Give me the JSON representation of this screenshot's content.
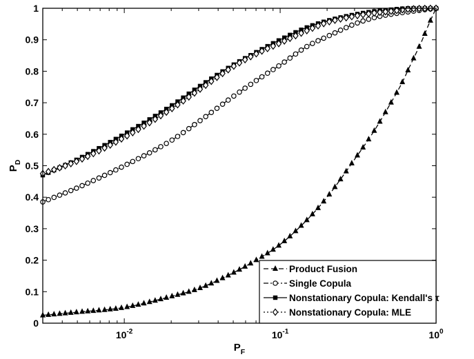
{
  "chart_data": {
    "type": "line",
    "title": "",
    "xlabel": {
      "main": "P",
      "sub": "F"
    },
    "ylabel": {
      "main": "P",
      "sub": "D"
    },
    "xscale": "log",
    "xlim": [
      0.003,
      1
    ],
    "ylim": [
      0,
      1
    ],
    "xticks": [
      {
        "value": 0.01,
        "base": "10",
        "exp": "-2"
      },
      {
        "value": 0.1,
        "base": "10",
        "exp": "-1"
      },
      {
        "value": 1,
        "base": "10",
        "exp": "0"
      }
    ],
    "yticks": [
      "0",
      "0.1",
      "0.2",
      "0.3",
      "0.4",
      "0.5",
      "0.6",
      "0.7",
      "0.8",
      "0.9",
      "1"
    ],
    "grid": false,
    "legend_position": "bottom-right",
    "series": [
      {
        "name": "Product Fusion",
        "line_style": "dashed",
        "marker": "triangle",
        "x": [
          0.003,
          0.005,
          0.01,
          0.02,
          0.03,
          0.05,
          0.07,
          0.1,
          0.15,
          0.2,
          0.3,
          0.4,
          0.5,
          0.6,
          0.7,
          0.8,
          0.9,
          1.0
        ],
        "y": [
          0.025,
          0.035,
          0.05,
          0.085,
          0.11,
          0.16,
          0.2,
          0.25,
          0.33,
          0.4,
          0.52,
          0.61,
          0.69,
          0.76,
          0.83,
          0.89,
          0.95,
          1.0
        ]
      },
      {
        "name": "Single Copula",
        "line_style": "dashdot",
        "marker": "circle",
        "x": [
          0.003,
          0.005,
          0.01,
          0.02,
          0.03,
          0.05,
          0.07,
          0.1,
          0.15,
          0.2,
          0.3,
          0.4,
          0.5,
          0.7,
          1.0
        ],
        "y": [
          0.385,
          0.43,
          0.5,
          0.58,
          0.64,
          0.72,
          0.77,
          0.82,
          0.88,
          0.91,
          0.95,
          0.97,
          0.98,
          0.99,
          1.0
        ]
      },
      {
        "name": "Nonstationary Copula: Kendall's τ",
        "line_style": "solid",
        "marker": "square",
        "x": [
          0.003,
          0.005,
          0.01,
          0.02,
          0.03,
          0.05,
          0.07,
          0.1,
          0.15,
          0.2,
          0.3,
          0.4,
          0.5,
          0.7,
          1.0
        ],
        "y": [
          0.47,
          0.52,
          0.6,
          0.69,
          0.75,
          0.82,
          0.86,
          0.9,
          0.94,
          0.96,
          0.98,
          0.99,
          0.995,
          1.0,
          1.0
        ]
      },
      {
        "name": "Nonstationary Copula: MLE",
        "line_style": "dotted",
        "marker": "diamond",
        "x": [
          0.003,
          0.005,
          0.01,
          0.02,
          0.03,
          0.05,
          0.07,
          0.1,
          0.15,
          0.2,
          0.3,
          0.4,
          0.5,
          0.7,
          1.0
        ],
        "y": [
          0.475,
          0.515,
          0.59,
          0.68,
          0.74,
          0.815,
          0.855,
          0.89,
          0.93,
          0.955,
          0.975,
          0.985,
          0.99,
          0.998,
          1.0
        ]
      }
    ]
  }
}
